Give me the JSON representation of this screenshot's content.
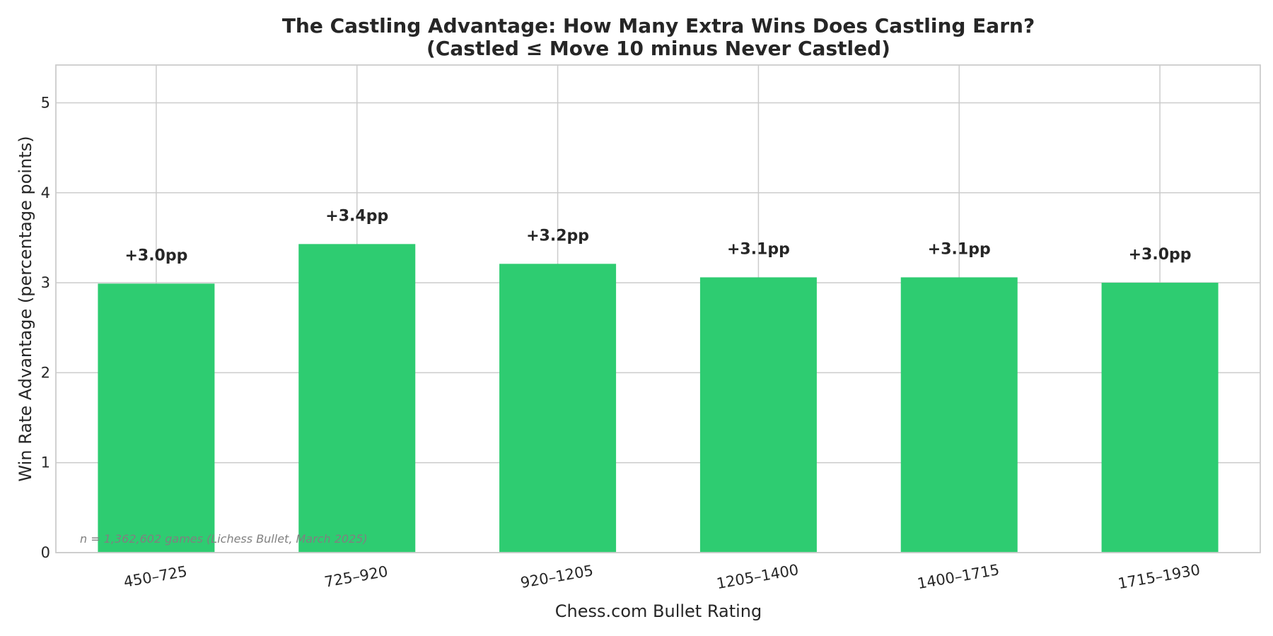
{
  "chart_data": {
    "type": "bar",
    "title": "The Castling Advantage: How Many Extra Wins Does Castling Earn?",
    "subtitle": "(Castled ≤ Move 10 minus Never Castled)",
    "xlabel": "Chess.com Bullet Rating",
    "ylabel": "Win Rate Advantage (percentage points)",
    "categories": [
      "450–725",
      "725–920",
      "920–1205",
      "1205–1400",
      "1400–1715",
      "1715–1930"
    ],
    "values": [
      2.99,
      3.43,
      3.21,
      3.06,
      3.06,
      3.0
    ],
    "data_labels": [
      "+3.0pp",
      "+3.4pp",
      "+3.2pp",
      "+3.1pp",
      "+3.1pp",
      "+3.0pp"
    ],
    "ylim": [
      0,
      5.42
    ],
    "yticks": [
      0,
      1,
      2,
      3,
      4,
      5
    ],
    "ytick_labels": [
      "0",
      "1",
      "2",
      "3",
      "4",
      "5"
    ],
    "grid": true,
    "bar_color": "#2ecc71",
    "annotation": "n = 1,362,602 games (Lichess Bullet, March 2025)"
  }
}
